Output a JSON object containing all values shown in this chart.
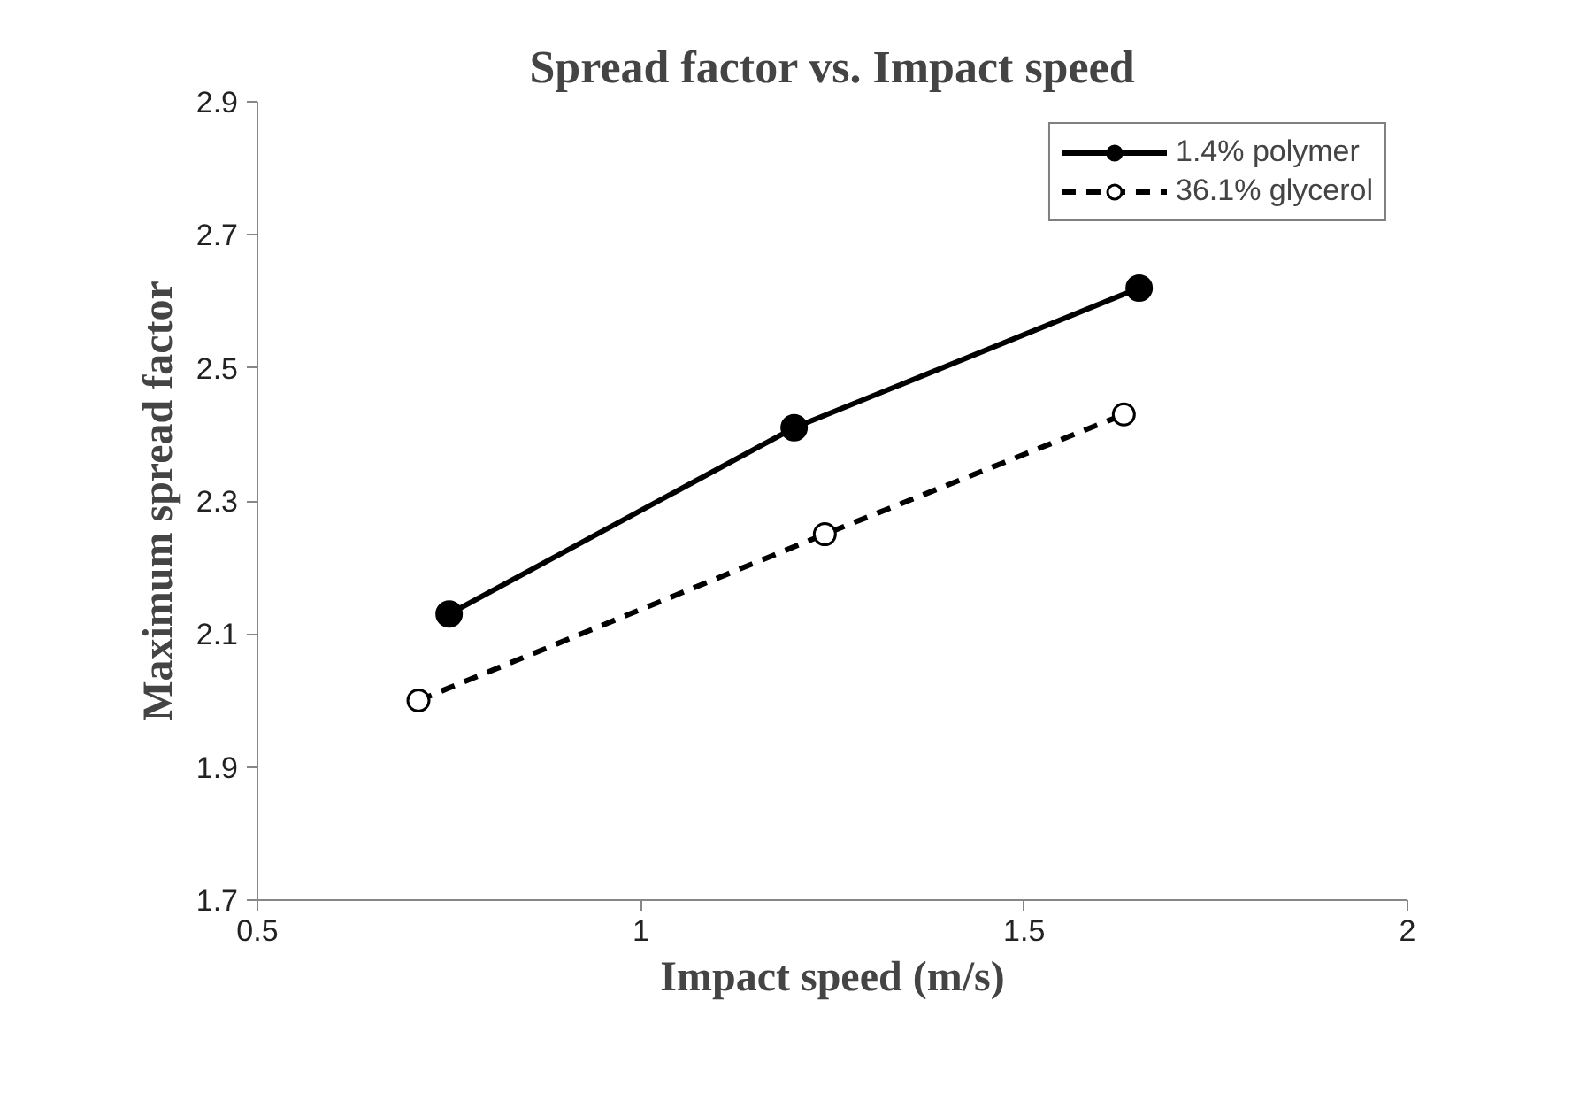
{
  "chart_data": {
    "type": "line",
    "title": "Spread factor vs. Impact speed",
    "xlabel": "Impact speed (m/s)",
    "ylabel": "Maximum spread factor",
    "xlim": [
      0.5,
      2
    ],
    "xticks": [
      0.5,
      1,
      1.5,
      2
    ],
    "ylim": [
      1.7,
      2.9
    ],
    "yticks": [
      1.7,
      1.9,
      2.1,
      2.3,
      2.5,
      2.7,
      2.9
    ],
    "grid": false,
    "legend": "top right",
    "series": [
      {
        "name": "1.4% polymer",
        "color": "#000000",
        "x": [
          0.75,
          1.2,
          1.65
        ],
        "values": [
          2.13,
          2.41,
          2.62
        ],
        "marker": "circle",
        "line_style": "solid"
      },
      {
        "name": "36.1% glycerol",
        "color": "#000000",
        "x": [
          0.71,
          1.24,
          1.63
        ],
        "values": [
          2.0,
          2.25,
          2.43
        ],
        "marker": "circle_open",
        "line_style": "dashed"
      }
    ]
  }
}
